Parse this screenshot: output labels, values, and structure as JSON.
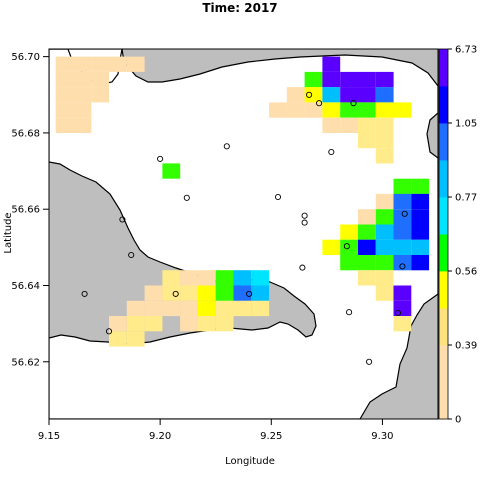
{
  "chart_data": {
    "type": "heatmap",
    "title": "Time: 2017",
    "xlabel": "Longitude",
    "ylabel": "Latitude",
    "xlim": [
      9.15,
      9.325
    ],
    "ylim": [
      56.605,
      56.702
    ],
    "x_ticks": [
      "9.15",
      "9.20",
      "9.25",
      "9.30"
    ],
    "x_tick_values": [
      9.15,
      9.2,
      9.25,
      9.3
    ],
    "y_ticks": [
      "56.62",
      "56.64",
      "56.66",
      "56.68",
      "56.70"
    ],
    "y_tick_values": [
      56.62,
      56.64,
      56.66,
      56.68,
      56.7
    ],
    "land_color": "#bebebe",
    "water_color": "#ffffff",
    "colorbar": {
      "tick_labels": [
        "0",
        "0.39",
        "0.56",
        "0.77",
        "1.05",
        "6.73"
      ],
      "bands": [
        "#ffdead",
        "#ffdead",
        "#f5deb3",
        "#ffff00",
        "#00ff00",
        "#00bfff",
        "#1e90ff",
        "#0000ff",
        "#7f00ff"
      ]
    },
    "cell_size": {
      "dx": 0.008,
      "dy": 0.004
    },
    "cells": [
      {
        "x": 9.157,
        "y": 56.698,
        "value": 0.33
      },
      {
        "x": 9.165,
        "y": 56.698,
        "value": 0.33
      },
      {
        "x": 9.173,
        "y": 56.698,
        "value": 0.33
      },
      {
        "x": 9.181,
        "y": 56.698,
        "value": 0.33
      },
      {
        "x": 9.189,
        "y": 56.698,
        "value": 0.33
      },
      {
        "x": 9.157,
        "y": 56.694,
        "value": 0.33
      },
      {
        "x": 9.165,
        "y": 56.694,
        "value": 0.33
      },
      {
        "x": 9.173,
        "y": 56.694,
        "value": 0.33
      },
      {
        "x": 9.157,
        "y": 56.69,
        "value": 0.33
      },
      {
        "x": 9.165,
        "y": 56.69,
        "value": 0.33
      },
      {
        "x": 9.173,
        "y": 56.69,
        "value": 0.33
      },
      {
        "x": 9.157,
        "y": 56.686,
        "value": 0.33
      },
      {
        "x": 9.165,
        "y": 56.686,
        "value": 0.33
      },
      {
        "x": 9.157,
        "y": 56.682,
        "value": 0.33
      },
      {
        "x": 9.165,
        "y": 56.682,
        "value": 0.33
      },
      {
        "x": 9.277,
        "y": 56.698,
        "value": 6.5
      },
      {
        "x": 9.269,
        "y": 56.694,
        "value": 0.67
      },
      {
        "x": 9.277,
        "y": 56.694,
        "value": 6.0
      },
      {
        "x": 9.285,
        "y": 56.694,
        "value": 6.5
      },
      {
        "x": 9.293,
        "y": 56.694,
        "value": 6.5
      },
      {
        "x": 9.301,
        "y": 56.694,
        "value": 6.5
      },
      {
        "x": 9.261,
        "y": 56.69,
        "value": 0.45
      },
      {
        "x": 9.269,
        "y": 56.69,
        "value": 0.52
      },
      {
        "x": 9.277,
        "y": 56.69,
        "value": 1.2
      },
      {
        "x": 9.285,
        "y": 56.69,
        "value": 6.5
      },
      {
        "x": 9.293,
        "y": 56.69,
        "value": 6.5
      },
      {
        "x": 9.301,
        "y": 56.69,
        "value": 1.5
      },
      {
        "x": 9.253,
        "y": 56.686,
        "value": 0.35
      },
      {
        "x": 9.261,
        "y": 56.686,
        "value": 0.4
      },
      {
        "x": 9.269,
        "y": 56.686,
        "value": 0.45
      },
      {
        "x": 9.277,
        "y": 56.686,
        "value": 0.52
      },
      {
        "x": 9.285,
        "y": 56.686,
        "value": 0.67
      },
      {
        "x": 9.293,
        "y": 56.686,
        "value": 0.67
      },
      {
        "x": 9.301,
        "y": 56.686,
        "value": 0.52
      },
      {
        "x": 9.309,
        "y": 56.686,
        "value": 0.5
      },
      {
        "x": 9.277,
        "y": 56.682,
        "value": 0.45
      },
      {
        "x": 9.285,
        "y": 56.682,
        "value": 0.45
      },
      {
        "x": 9.293,
        "y": 56.682,
        "value": 0.47
      },
      {
        "x": 9.301,
        "y": 56.682,
        "value": 0.48
      },
      {
        "x": 9.293,
        "y": 56.678,
        "value": 0.47
      },
      {
        "x": 9.301,
        "y": 56.678,
        "value": 0.47
      },
      {
        "x": 9.301,
        "y": 56.674,
        "value": 0.46
      },
      {
        "x": 9.205,
        "y": 56.67,
        "value": 0.67
      },
      {
        "x": 9.309,
        "y": 56.666,
        "value": 0.67
      },
      {
        "x": 9.317,
        "y": 56.666,
        "value": 0.67
      },
      {
        "x": 9.301,
        "y": 56.662,
        "value": 0.45
      },
      {
        "x": 9.309,
        "y": 56.662,
        "value": 1.5
      },
      {
        "x": 9.317,
        "y": 56.662,
        "value": 3.0
      },
      {
        "x": 9.293,
        "y": 56.658,
        "value": 0.45
      },
      {
        "x": 9.301,
        "y": 56.658,
        "value": 0.67
      },
      {
        "x": 9.309,
        "y": 56.658,
        "value": 1.5
      },
      {
        "x": 9.317,
        "y": 56.658,
        "value": 3.0
      },
      {
        "x": 9.285,
        "y": 56.654,
        "value": 0.52
      },
      {
        "x": 9.293,
        "y": 56.654,
        "value": 0.67
      },
      {
        "x": 9.301,
        "y": 56.654,
        "value": 1.2
      },
      {
        "x": 9.309,
        "y": 56.654,
        "value": 1.5
      },
      {
        "x": 9.317,
        "y": 56.654,
        "value": 3.0
      },
      {
        "x": 9.277,
        "y": 56.65,
        "value": 0.52
      },
      {
        "x": 9.285,
        "y": 56.65,
        "value": 0.7
      },
      {
        "x": 9.293,
        "y": 56.65,
        "value": 3.0
      },
      {
        "x": 9.301,
        "y": 56.65,
        "value": 1.2
      },
      {
        "x": 9.309,
        "y": 56.65,
        "value": 1.2
      },
      {
        "x": 9.317,
        "y": 56.65,
        "value": 1.2
      },
      {
        "x": 9.285,
        "y": 56.646,
        "value": 0.7
      },
      {
        "x": 9.293,
        "y": 56.646,
        "value": 0.67
      },
      {
        "x": 9.301,
        "y": 56.646,
        "value": 0.67
      },
      {
        "x": 9.309,
        "y": 56.646,
        "value": 1.5
      },
      {
        "x": 9.317,
        "y": 56.646,
        "value": 3.0
      },
      {
        "x": 9.293,
        "y": 56.642,
        "value": 0.47
      },
      {
        "x": 9.301,
        "y": 56.642,
        "value": 0.47
      },
      {
        "x": 9.301,
        "y": 56.638,
        "value": 0.48
      },
      {
        "x": 9.309,
        "y": 56.638,
        "value": 6.0
      },
      {
        "x": 9.309,
        "y": 56.634,
        "value": 6.0
      },
      {
        "x": 9.309,
        "y": 56.63,
        "value": 0.46
      },
      {
        "x": 9.205,
        "y": 56.642,
        "value": 0.48
      },
      {
        "x": 9.213,
        "y": 56.642,
        "value": 0.45
      },
      {
        "x": 9.221,
        "y": 56.642,
        "value": 0.45
      },
      {
        "x": 9.229,
        "y": 56.642,
        "value": 0.67
      },
      {
        "x": 9.237,
        "y": 56.642,
        "value": 1.2
      },
      {
        "x": 9.245,
        "y": 56.642,
        "value": 0.9
      },
      {
        "x": 9.197,
        "y": 56.638,
        "value": 0.42
      },
      {
        "x": 9.205,
        "y": 56.638,
        "value": 0.46
      },
      {
        "x": 9.213,
        "y": 56.638,
        "value": 0.46
      },
      {
        "x": 9.221,
        "y": 56.638,
        "value": 0.5
      },
      {
        "x": 9.229,
        "y": 56.638,
        "value": 0.67
      },
      {
        "x": 9.237,
        "y": 56.638,
        "value": 1.5
      },
      {
        "x": 9.245,
        "y": 56.638,
        "value": 1.1
      },
      {
        "x": 9.189,
        "y": 56.634,
        "value": 0.42
      },
      {
        "x": 9.197,
        "y": 56.634,
        "value": 0.42
      },
      {
        "x": 9.205,
        "y": 56.634,
        "value": 0.45
      },
      {
        "x": 9.213,
        "y": 56.634,
        "value": 0.45
      },
      {
        "x": 9.221,
        "y": 56.634,
        "value": 0.5
      },
      {
        "x": 9.229,
        "y": 56.634,
        "value": 0.47
      },
      {
        "x": 9.237,
        "y": 56.634,
        "value": 0.47
      },
      {
        "x": 9.245,
        "y": 56.634,
        "value": 0.46
      },
      {
        "x": 9.181,
        "y": 56.63,
        "value": 0.42
      },
      {
        "x": 9.189,
        "y": 56.63,
        "value": 0.47
      },
      {
        "x": 9.197,
        "y": 56.63,
        "value": 0.46
      },
      {
        "x": 9.213,
        "y": 56.63,
        "value": 0.42
      },
      {
        "x": 9.221,
        "y": 56.63,
        "value": 0.46
      },
      {
        "x": 9.229,
        "y": 56.63,
        "value": 0.46
      },
      {
        "x": 9.181,
        "y": 56.626,
        "value": 0.47
      },
      {
        "x": 9.189,
        "y": 56.626,
        "value": 0.47
      }
    ],
    "stations": [
      {
        "x": 9.267,
        "y": 56.69
      },
      {
        "x": 9.2715,
        "y": 56.6878
      },
      {
        "x": 9.287,
        "y": 56.6878
      },
      {
        "x": 9.2,
        "y": 56.6732
      },
      {
        "x": 9.23,
        "y": 56.6765
      },
      {
        "x": 9.277,
        "y": 56.675
      },
      {
        "x": 9.212,
        "y": 56.663
      },
      {
        "x": 9.253,
        "y": 56.6632
      },
      {
        "x": 9.265,
        "y": 56.6583
      },
      {
        "x": 9.265,
        "y": 56.6565
      },
      {
        "x": 9.183,
        "y": 56.6573
      },
      {
        "x": 9.31,
        "y": 56.6588
      },
      {
        "x": 9.284,
        "y": 56.6503
      },
      {
        "x": 9.187,
        "y": 56.648
      },
      {
        "x": 9.264,
        "y": 56.6447
      },
      {
        "x": 9.309,
        "y": 56.645
      },
      {
        "x": 9.166,
        "y": 56.6378
      },
      {
        "x": 9.207,
        "y": 56.6378
      },
      {
        "x": 9.24,
        "y": 56.6378
      },
      {
        "x": 9.285,
        "y": 56.633
      },
      {
        "x": 9.307,
        "y": 56.6328
      },
      {
        "x": 9.177,
        "y": 56.628
      },
      {
        "x": 9.294,
        "y": 56.62
      }
    ]
  }
}
